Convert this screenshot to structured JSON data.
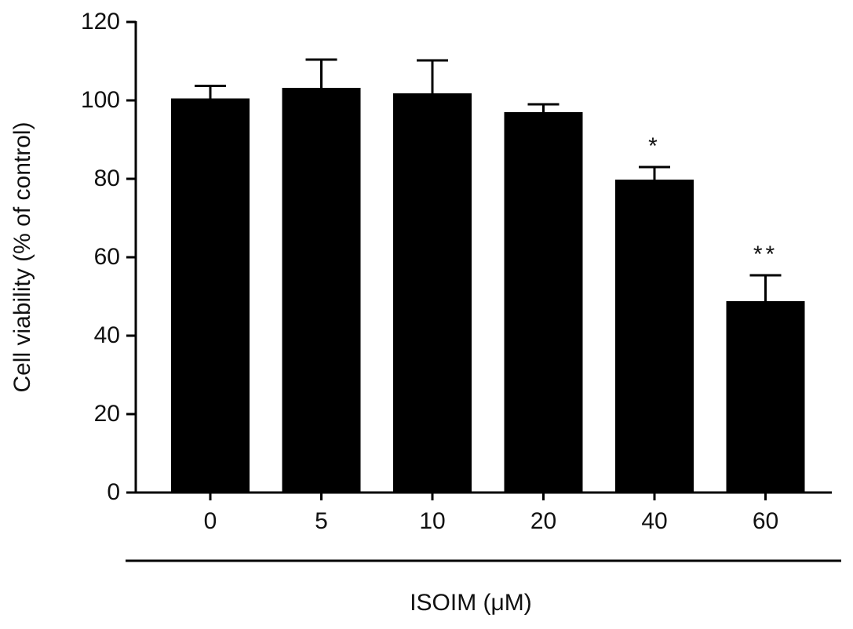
{
  "chart_data": {
    "type": "bar",
    "y_label": "Cell viability (% of control)",
    "x_label": "ISOIM (μM)",
    "categories": [
      "0",
      "5",
      "10",
      "20",
      "40",
      "60"
    ],
    "values": [
      100.5,
      103.2,
      101.8,
      97,
      79.8,
      48.8
    ],
    "errors": [
      3.2,
      7.2,
      8.4,
      2,
      3.2,
      6.6
    ],
    "color": "#000000",
    "ylim": [
      0,
      120
    ],
    "yticks": [
      0,
      20,
      40,
      60,
      80,
      100,
      120
    ],
    "annotations": [
      {
        "category": "40",
        "text": "*"
      },
      {
        "category": "60",
        "text": "**"
      }
    ]
  }
}
